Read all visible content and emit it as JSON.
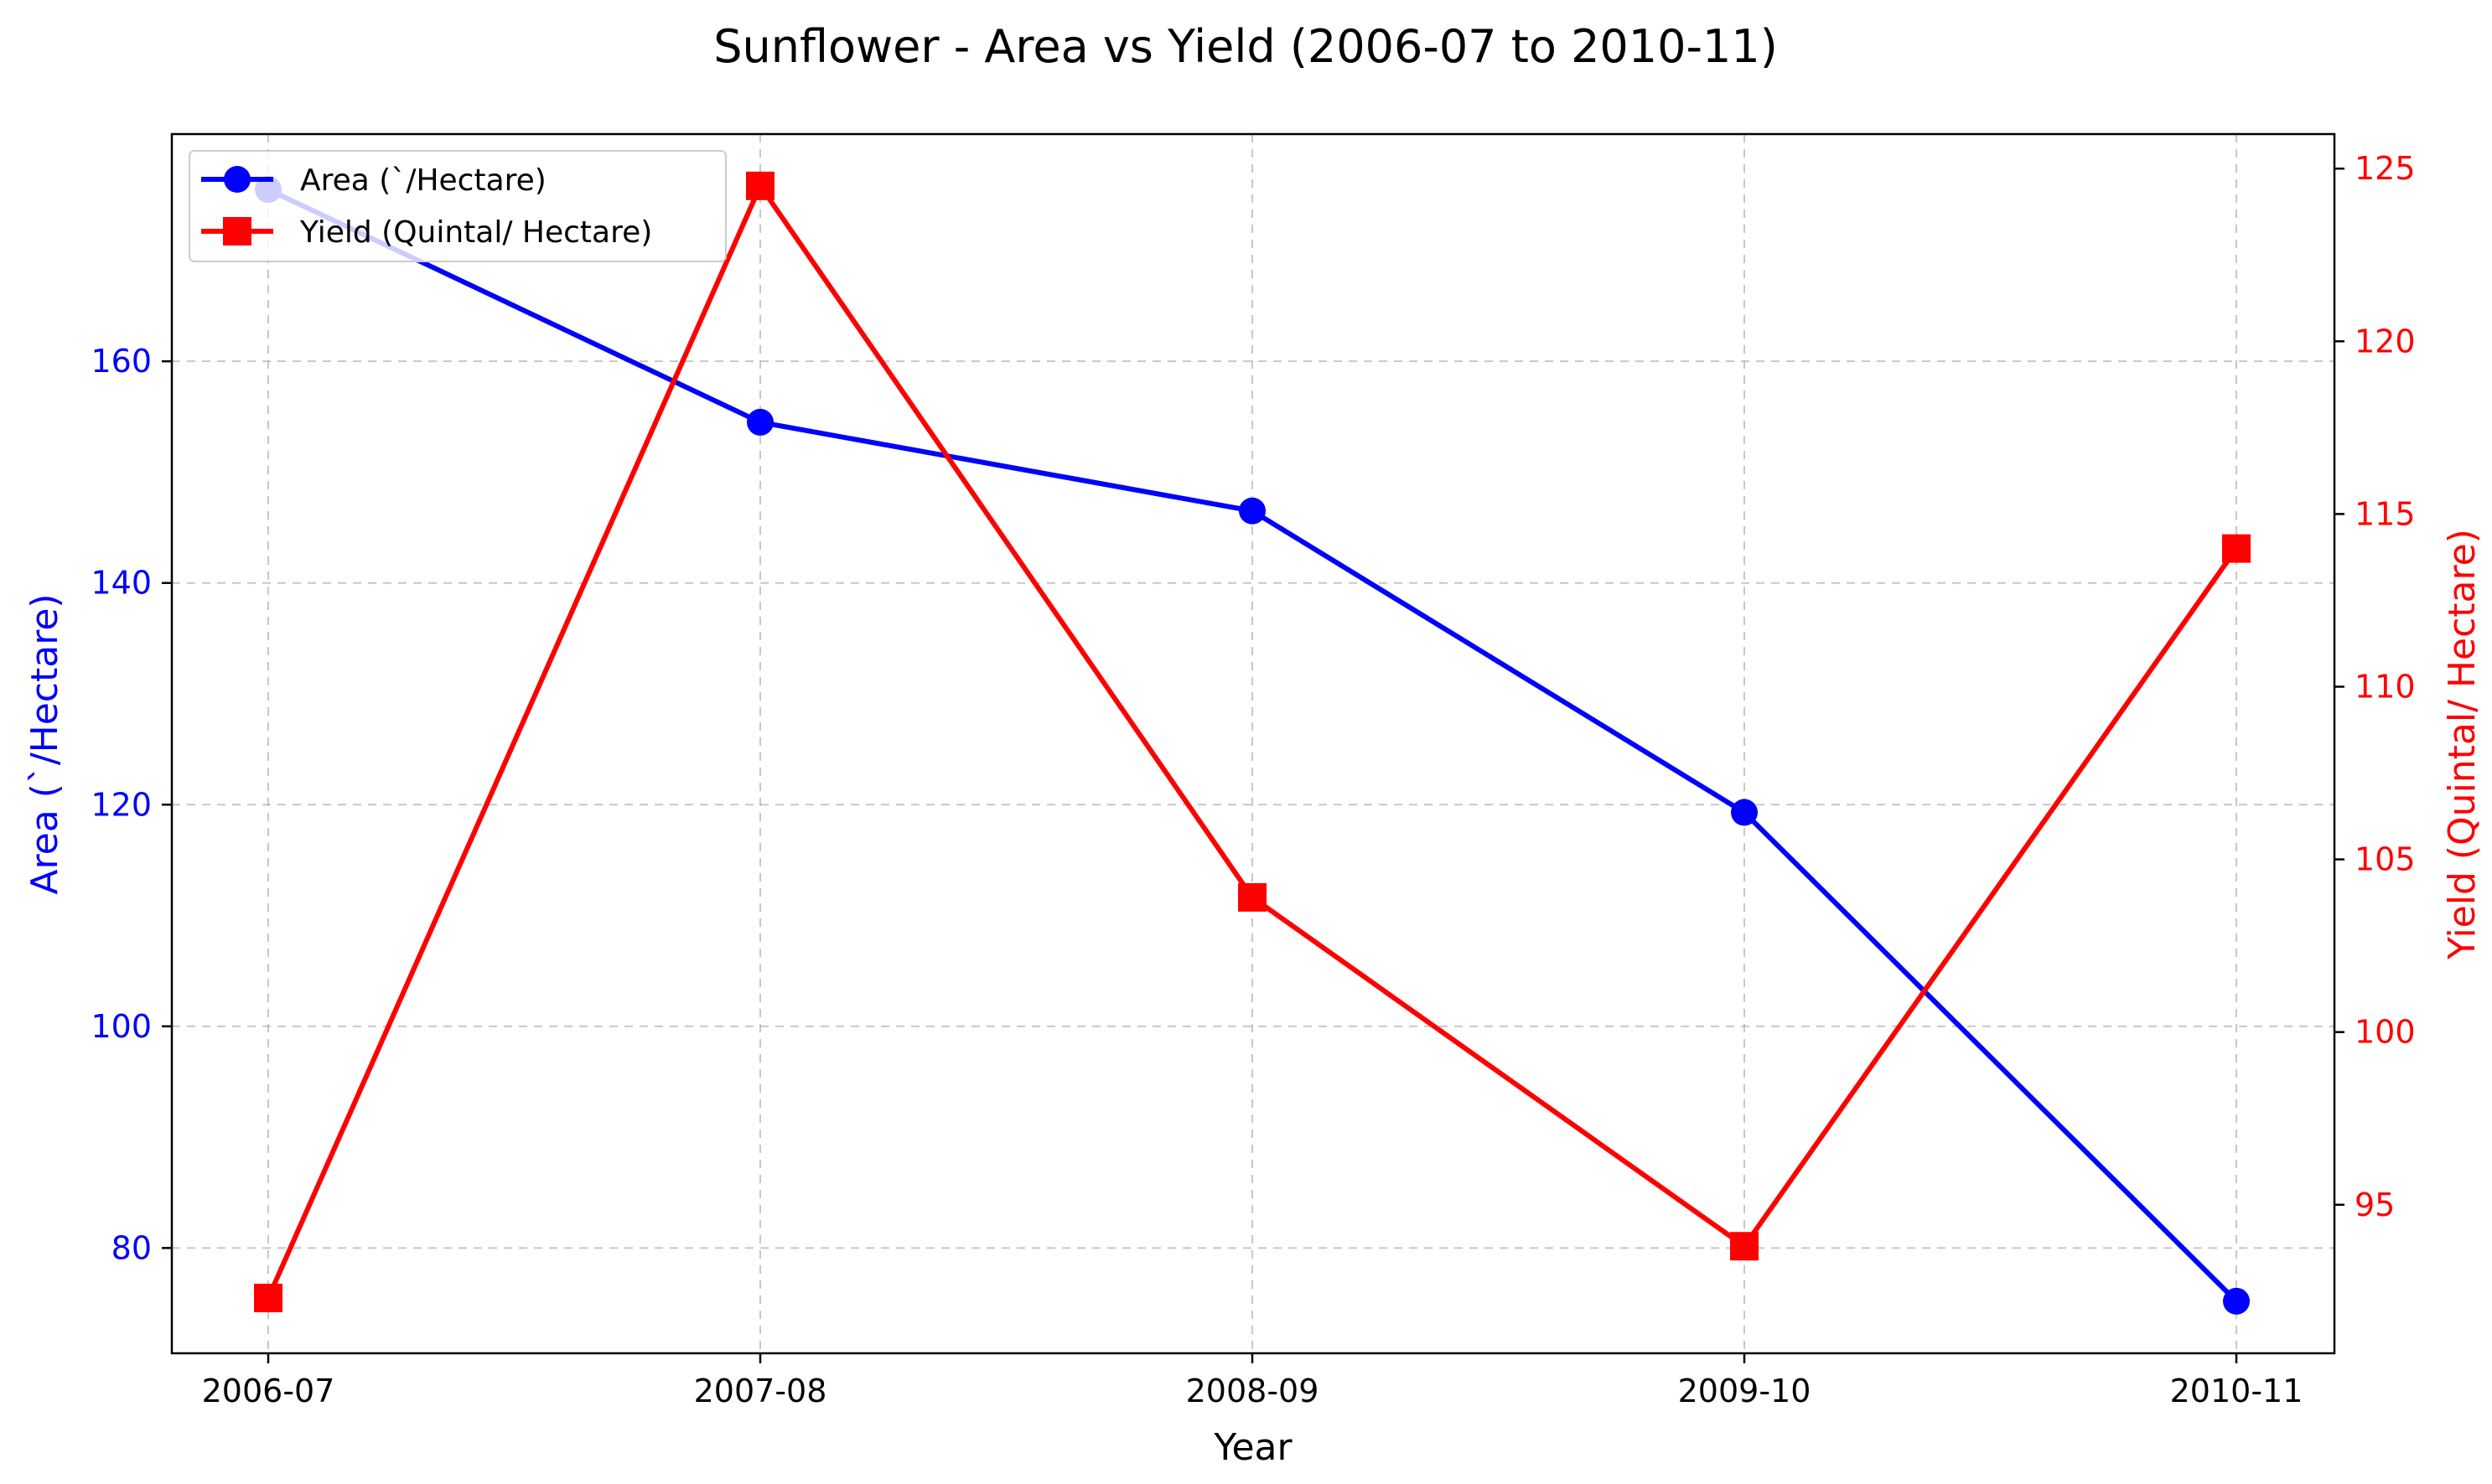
{
  "chart_data": {
    "type": "line",
    "title": "Sunflower - Area vs Yield (2006-07 to 2010-11)",
    "xlabel": "Year",
    "ylabel_left": "Area (`/Hectare)",
    "ylabel_right": "Yield (Quintal/ Hectare)",
    "categories": [
      "2006-07",
      "2007-08",
      "2008-09",
      "2009-10",
      "2010-11"
    ],
    "left_axis": {
      "ylim": [
        70.5,
        180.5
      ],
      "ticks": [
        80,
        100,
        120,
        140,
        160
      ],
      "color": "#0000ff"
    },
    "right_axis": {
      "ylim": [
        90.7,
        126.0
      ],
      "ticks": [
        95,
        100,
        105,
        110,
        115,
        120,
        125
      ],
      "color": "#ff0000"
    },
    "grid": true,
    "legend_position": "top-left",
    "series": [
      {
        "name": "Area (`/Hectare)",
        "axis": "left",
        "color": "#0000ff",
        "marker": "circle",
        "values": [
          175.5,
          154.5,
          146.5,
          119.3,
          75.2
        ]
      },
      {
        "name": "Yield (Quintal/ Hectare)",
        "axis": "right",
        "color": "#ff0000",
        "marker": "square",
        "values": [
          92.3,
          124.5,
          103.9,
          93.8,
          114.0
        ]
      }
    ]
  }
}
